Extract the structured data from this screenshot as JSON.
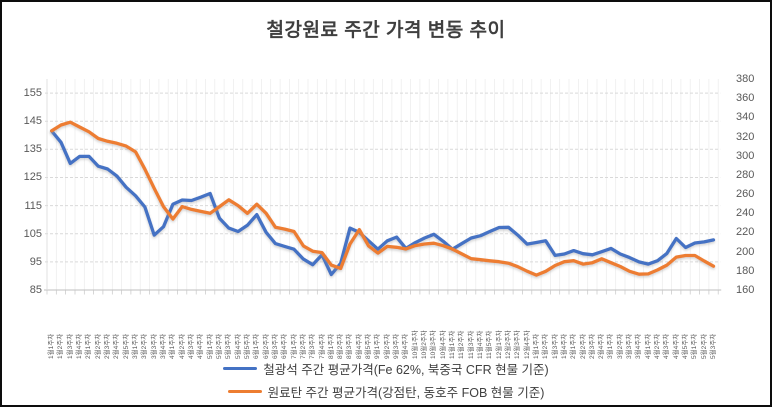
{
  "title": "철강원료 주간 가격 변동 추이",
  "chart_data": {
    "type": "line",
    "title": "철강원료 주간 가격 변동 추이",
    "legend_position": "bottom",
    "grid": {
      "horizontal": "dashed",
      "vertical": "light-solid-per-category"
    },
    "colors": {
      "iron_ore": "#4472C4",
      "coking_coal": "#ED7D31"
    },
    "left_axis": {
      "min": 85,
      "max": 160,
      "step": 10,
      "ticks": [
        85,
        95,
        105,
        115,
        125,
        135,
        145,
        155
      ]
    },
    "right_axis": {
      "min": 160,
      "max": 380,
      "step": 20,
      "ticks": [
        160,
        180,
        200,
        220,
        240,
        260,
        280,
        300,
        320,
        340,
        360,
        380
      ]
    },
    "categories": [
      "1월1주차",
      "1월2주차",
      "1월3주차",
      "1월4주차",
      "2월1주차",
      "2월2주차",
      "2월3주차",
      "2월4주차",
      "2월5주차",
      "3월1주차",
      "3월2주차",
      "3월3주차",
      "3월4주차",
      "4월1주차",
      "4월2주차",
      "4월3주차",
      "4월4주차",
      "5월1주차",
      "5월2주차",
      "5월3주차",
      "5월4주차",
      "5월5주차",
      "6월1주차",
      "6월2주차",
      "6월3주차",
      "6월4주차",
      "7월1주차",
      "7월2주차",
      "7월3주차",
      "7월4주차",
      "8월1주차",
      "8월2주차",
      "8월3주차",
      "8월4주차",
      "8월5주차",
      "9월1주차",
      "9월2주차",
      "9월3주차",
      "9월4주차",
      "10월1주차",
      "10월2주차",
      "10월3주차",
      "10월4주차",
      "11월1주차",
      "11월2주차",
      "11월3주차",
      "11월4주차",
      "11월5주차",
      "12월1주차",
      "12월2주차",
      "12월3주차",
      "12월4주차",
      "1월1주차",
      "1월2주차",
      "1월3주차",
      "1월4주차",
      "2월1주차",
      "2월2주차",
      "2월3주차",
      "2월4주차",
      "3월1주차",
      "3월2주차",
      "3월3주차",
      "3월4주차",
      "4월1주차",
      "4월2주차",
      "4월3주차",
      "4월4주차",
      "4월5주차",
      "5월1주차",
      "5월2주차",
      "5월3주차"
    ],
    "series": [
      {
        "name": "철광석 주간 평균가격(Fe 62%, 북중국 CFR 현물 기준)",
        "axis": "left",
        "color": "#4472C4",
        "values": [
          141.5,
          137.5,
          130,
          132.5,
          132.5,
          129,
          128,
          125.5,
          121.5,
          118.5,
          114.5,
          104.5,
          107.5,
          115.5,
          117,
          116.8,
          118,
          119.3,
          110.5,
          107,
          105.8,
          108,
          111.8,
          105.5,
          101.5,
          100.5,
          99.5,
          96,
          94,
          97.5,
          90.5,
          94.5,
          107,
          105.5,
          102.5,
          99.5,
          102.5,
          103.8,
          99.8,
          101.8,
          103.5,
          104.8,
          102.3,
          99.5,
          101.5,
          103.5,
          104.3,
          105.8,
          107.2,
          107.3,
          104.5,
          101.3,
          101.9,
          102.5,
          97.3,
          97.8,
          99,
          97.9,
          97.5,
          98.6,
          99.8,
          97.8,
          96.5,
          95,
          94.2,
          95.4,
          98,
          103.3,
          100.1,
          101.7,
          102.1,
          102.8
        ]
      },
      {
        "name": "원료탄 주간 평균가격(강점탄, 동호주 FOB 현물 기준)",
        "axis": "right",
        "color": "#ED7D31",
        "values": [
          326,
          332,
          335,
          330,
          325,
          318,
          315,
          313,
          310,
          304,
          286,
          266,
          247,
          234,
          247,
          244,
          242,
          240,
          247,
          254,
          248,
          240,
          249.5,
          240,
          225.5,
          223.5,
          221,
          206,
          200.5,
          199,
          186,
          182.5,
          208,
          223,
          206,
          198.5,
          205.5,
          204.5,
          202.8,
          206.3,
          208,
          208.8,
          206.2,
          202.6,
          197.6,
          192.6,
          191.6,
          190.4,
          189.5,
          187.9,
          184.3,
          179.6,
          175.5,
          179.5,
          185.5,
          189.5,
          190.5,
          187,
          188.5,
          192.5,
          188.5,
          184.5,
          179.5,
          176.5,
          176.8,
          181,
          186,
          194.3,
          196,
          196,
          190.2,
          184.8
        ]
      }
    ]
  },
  "legend": {
    "items": [
      {
        "label": "철광석 주간 평균가격(Fe 62%, 북중국 CFR 현물 기준)",
        "color": "#4472C4"
      },
      {
        "label": "원료탄 주간 평균가격(강점탄, 동호주 FOB 현물 기준)",
        "color": "#ED7D31"
      }
    ]
  }
}
